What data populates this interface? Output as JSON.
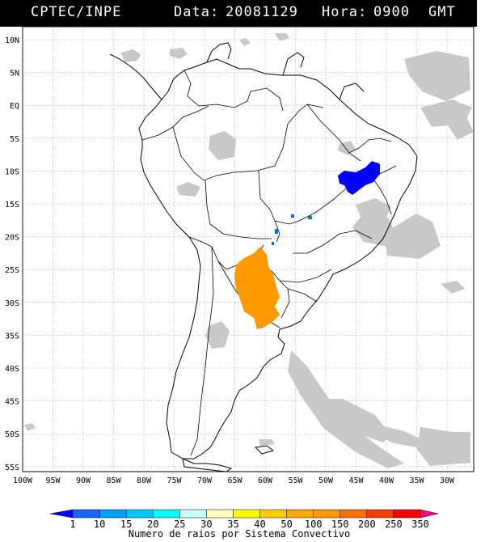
{
  "header": {
    "org": "CPTEC/INPE",
    "date_label": "Data:",
    "date": "20081129",
    "time_label": "Hora:",
    "time": "0900",
    "tz": "GMT"
  },
  "map": {
    "lat_labels": [
      "10N",
      "5N",
      "EQ",
      "5S",
      "10S",
      "15S",
      "20S",
      "25S",
      "30S",
      "35S",
      "40S",
      "45S",
      "50S",
      "55S"
    ],
    "lon_labels": [
      "100W",
      "95W",
      "90W",
      "85W",
      "80W",
      "75W",
      "70W",
      "65W",
      "60W",
      "55W",
      "50W",
      "45W",
      "40W",
      "35W",
      "30W"
    ],
    "colors": {
      "land_border": "#000000",
      "grid": "#808080",
      "cloud": "#c8c8c8",
      "cell_blue": "#0000ff",
      "cell_orange": "#ff9900",
      "cell_small": "#0070e0"
    }
  },
  "colorbar": {
    "ticks": [
      "1",
      "10",
      "15",
      "20",
      "25",
      "30",
      "35",
      "40",
      "50",
      "100",
      "150",
      "200",
      "250",
      "350"
    ],
    "colors": [
      "#0000ff",
      "#1a64ff",
      "#00a0ff",
      "#00c8ff",
      "#00ffff",
      "#c8ffff",
      "#ffffc0",
      "#ffff00",
      "#ffcc00",
      "#ffaa00",
      "#ff9900",
      "#ff7000",
      "#ff3c00",
      "#ff0000",
      "#ff0080"
    ],
    "caption": "Numero de raios por Sistema Convectivo"
  }
}
